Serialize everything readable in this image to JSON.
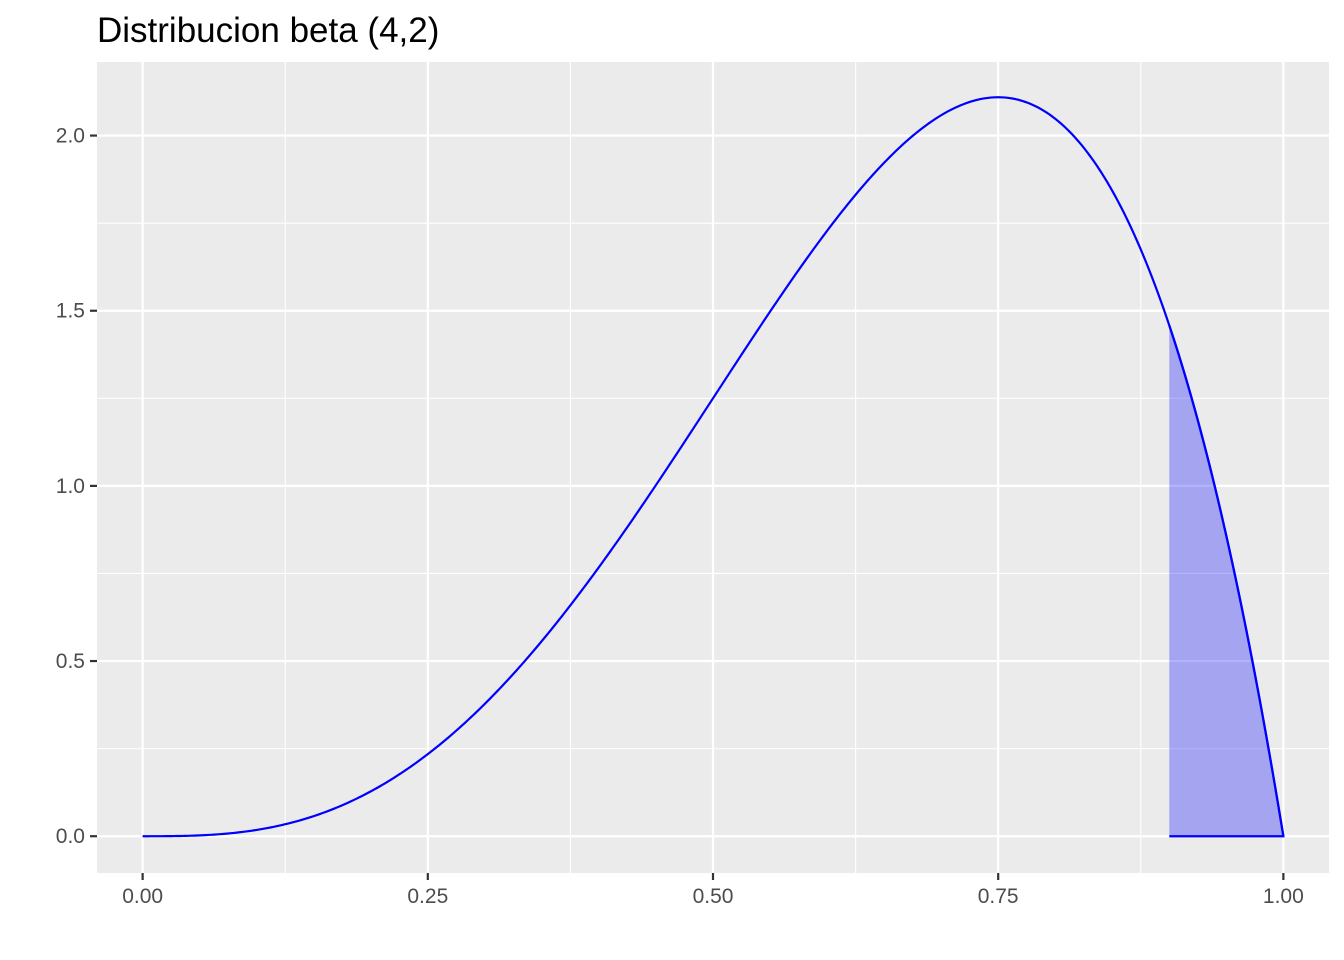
{
  "chart_data": {
    "type": "area",
    "title": "Distribucion beta (4,2)",
    "xlabel": "",
    "ylabel": "",
    "distribution": {
      "family": "beta",
      "alpha": 4,
      "beta": 2
    },
    "xlim": [
      -0.04,
      1.04
    ],
    "ylim": [
      -0.105,
      2.21
    ],
    "x_ticks": [
      0.0,
      0.25,
      0.5,
      0.75,
      1.0
    ],
    "x_tick_labels": [
      "0.00",
      "0.25",
      "0.50",
      "0.75",
      "1.00"
    ],
    "y_ticks": [
      0.0,
      0.5,
      1.0,
      1.5,
      2.0
    ],
    "y_tick_labels": [
      "0.0",
      "0.5",
      "1.0",
      "1.5",
      "2.0"
    ],
    "x": [
      0,
      0.05,
      0.1,
      0.15,
      0.2,
      0.25,
      0.3,
      0.35,
      0.4,
      0.45,
      0.5,
      0.55,
      0.6,
      0.65,
      0.7,
      0.75,
      0.8,
      0.85,
      0.9,
      0.95,
      1.0
    ],
    "y": [
      0,
      0.0024,
      0.018,
      0.0574,
      0.128,
      0.2344,
      0.378,
      0.5574,
      0.768,
      1.0024,
      1.25,
      1.4974,
      1.728,
      1.9224,
      2.058,
      2.1094,
      2.048,
      1.8424,
      1.458,
      0.8574,
      0
    ],
    "shaded_region": {
      "from": 0.9,
      "to": 1.0
    },
    "grid": true,
    "legend": "none",
    "colors": {
      "line": "#0000ff",
      "fill": "#0000ff",
      "fill_alpha": 0.3,
      "panel": "#ebebeb",
      "grid": "#ffffff",
      "axis_text": "#4d4d4d",
      "tick": "#333333"
    }
  }
}
